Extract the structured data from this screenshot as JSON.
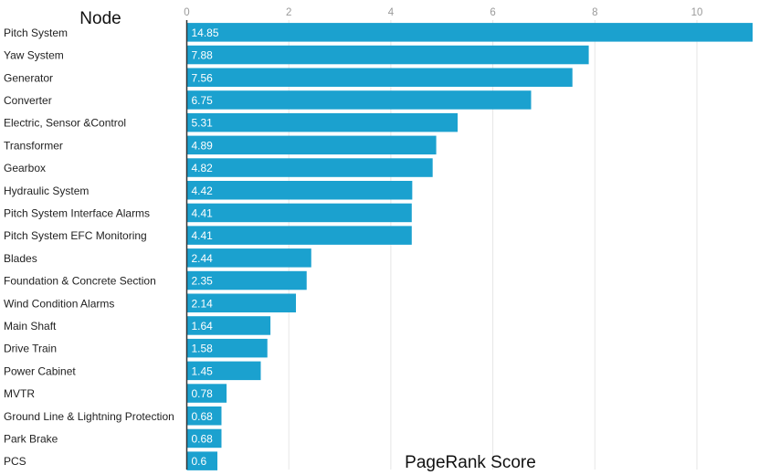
{
  "chart_data": {
    "type": "bar",
    "orientation": "horizontal",
    "title": "Node",
    "xlabel": "PageRank Score",
    "ylabel": "",
    "xlim": [
      0,
      11.1
    ],
    "xticks": [
      0,
      2,
      4,
      6,
      8,
      10
    ],
    "grid": true,
    "bar_color": "#1ba1cf",
    "categories": [
      "Pitch System",
      "Yaw System",
      "Generator",
      "Converter",
      "Electric, Sensor &Control",
      "Transformer",
      "Gearbox",
      "Hydraulic System",
      "Pitch System Interface Alarms",
      "Pitch System EFC Monitoring",
      "Blades",
      "Foundation & Concrete Section",
      "Wind Condition Alarms",
      "Main Shaft",
      "Drive Train",
      "Power Cabinet",
      "MVTR",
      "Ground Line & Lightning Protection",
      "Park Brake",
      "PCS"
    ],
    "values": [
      14.85,
      7.88,
      7.56,
      6.75,
      5.31,
      4.89,
      4.82,
      4.42,
      4.41,
      4.41,
      2.44,
      2.35,
      2.14,
      1.64,
      1.58,
      1.45,
      0.78,
      0.68,
      0.68,
      0.6
    ],
    "data_labels": [
      "14.85",
      "7.88",
      "7.56",
      "6.75",
      "5.31",
      "4.89",
      "4.82",
      "4.42",
      "4.41",
      "4.41",
      "2.44",
      "2.35",
      "2.14",
      "1.64",
      "1.58",
      "1.45",
      "0.78",
      "0.68",
      "0.68",
      "0.6"
    ]
  }
}
